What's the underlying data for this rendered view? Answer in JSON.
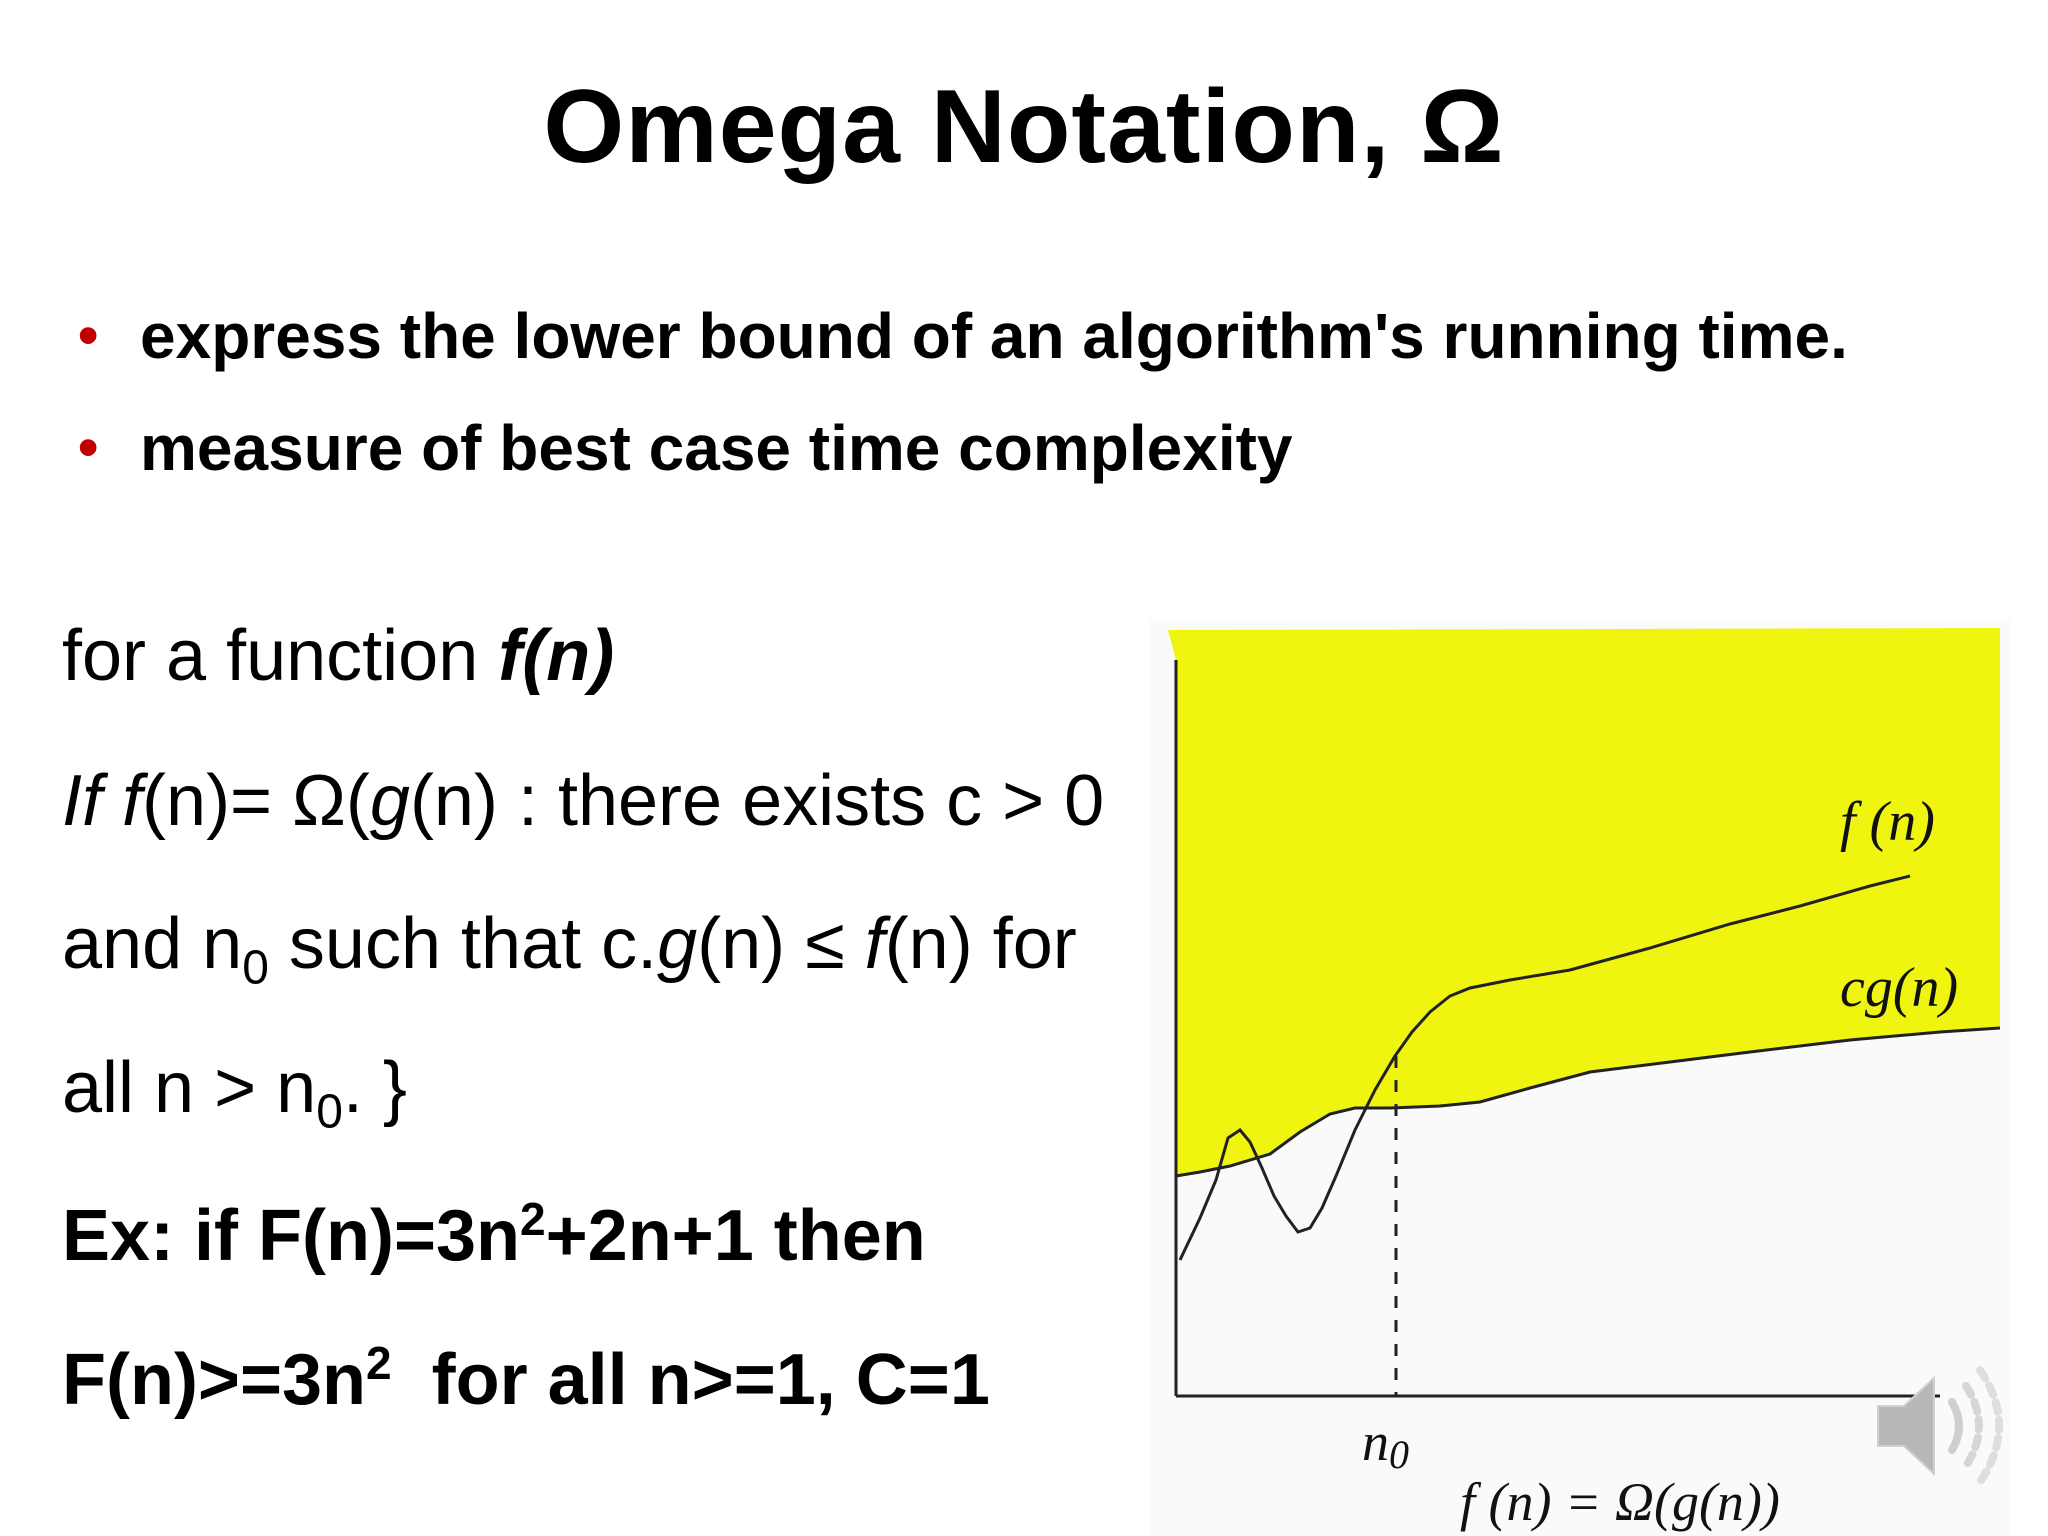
{
  "slide": {
    "title": "Omega Notation, Ω",
    "bullets": [
      "express the lower bound of an algorithm's running time.",
      "measure of best case time complexity"
    ],
    "definition": {
      "line1_prefix": "for a function ",
      "line1_func": "f(n)",
      "line2": {
        "if": "If",
        "f": "f",
        "mid": "(n)= Ω(",
        "g": "g",
        "tail": "(n) : there exists c > 0"
      },
      "line3": {
        "a": "and n",
        "sub": "0",
        "b": " such that c.",
        "g": "g",
        "c": "(n) ≤ ",
        "f": "f",
        "d": "(n) for"
      },
      "line4": {
        "a": "all n > n",
        "sub": "0",
        "b": ". }"
      }
    },
    "example": {
      "line1": {
        "a": "Ex: if F(n)=3n",
        "sup": "2",
        "b": "+2n+1 then"
      },
      "line2": {
        "a": "F(n)>=3n",
        "sup": "2",
        "b": "  for all n>=1, C=1"
      }
    }
  },
  "figure": {
    "label_f": "f (n)",
    "label_cg": "cg(n)",
    "label_n0": "n",
    "label_n0_sub": "0",
    "caption": "f (n) = Ω(g(n))",
    "colors": {
      "shade": "#f0f510",
      "curve": "#222222"
    }
  }
}
